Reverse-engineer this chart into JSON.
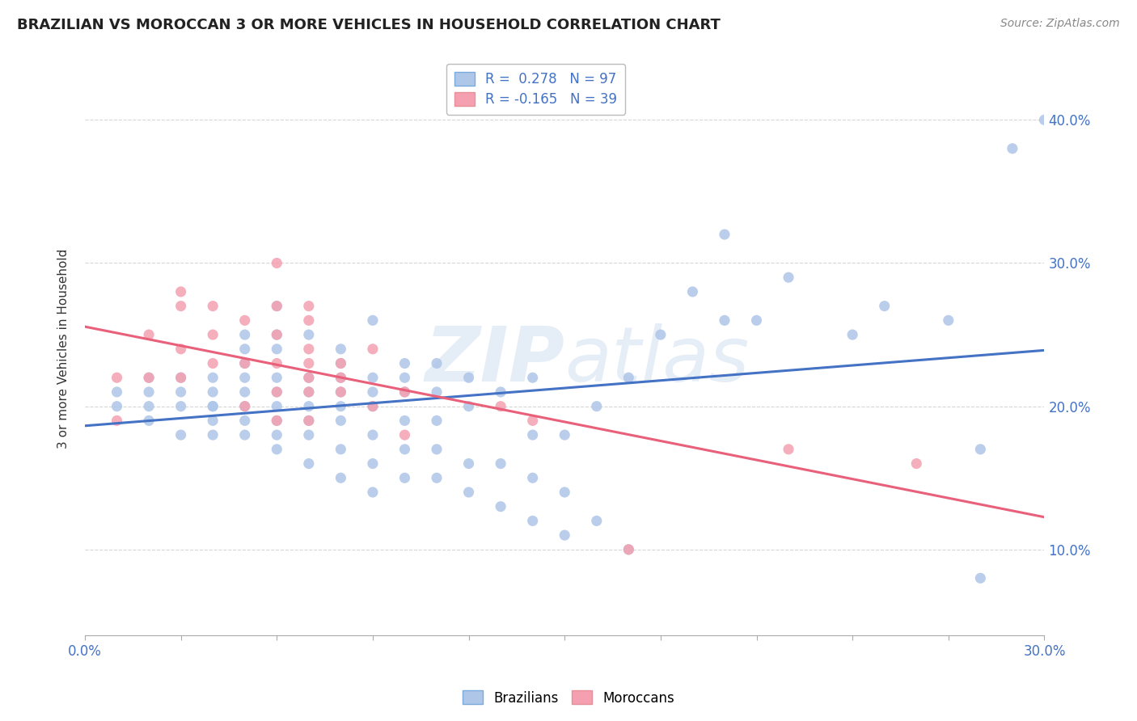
{
  "title": "BRAZILIAN VS MOROCCAN 3 OR MORE VEHICLES IN HOUSEHOLD CORRELATION CHART",
  "source": "Source: ZipAtlas.com",
  "ylabel": "3 or more Vehicles in Household",
  "xlim": [
    0.0,
    0.3
  ],
  "ylim": [
    0.04,
    0.44
  ],
  "brazilian_R": 0.278,
  "brazilian_N": 97,
  "moroccan_R": -0.165,
  "moroccan_N": 39,
  "brazil_color": "#aec6e8",
  "morocco_color": "#f4a0b0",
  "brazil_line_color": "#4472c4",
  "morocco_line_color": "#e8607a",
  "legend_label_1": "Brazilians",
  "legend_label_2": "Moroccans",
  "watermark": "ZIPatlas",
  "brazil_scatter_x": [
    0.01,
    0.01,
    0.02,
    0.02,
    0.02,
    0.02,
    0.03,
    0.03,
    0.03,
    0.03,
    0.04,
    0.04,
    0.04,
    0.04,
    0.04,
    0.04,
    0.05,
    0.05,
    0.05,
    0.05,
    0.05,
    0.05,
    0.05,
    0.05,
    0.06,
    0.06,
    0.06,
    0.06,
    0.06,
    0.06,
    0.06,
    0.06,
    0.06,
    0.07,
    0.07,
    0.07,
    0.07,
    0.07,
    0.07,
    0.07,
    0.08,
    0.08,
    0.08,
    0.08,
    0.08,
    0.08,
    0.08,
    0.08,
    0.09,
    0.09,
    0.09,
    0.09,
    0.09,
    0.09,
    0.09,
    0.1,
    0.1,
    0.1,
    0.1,
    0.1,
    0.1,
    0.11,
    0.11,
    0.11,
    0.11,
    0.11,
    0.12,
    0.12,
    0.12,
    0.12,
    0.13,
    0.13,
    0.13,
    0.14,
    0.14,
    0.14,
    0.14,
    0.15,
    0.15,
    0.15,
    0.16,
    0.16,
    0.17,
    0.17,
    0.18,
    0.19,
    0.2,
    0.2,
    0.21,
    0.22,
    0.24,
    0.25,
    0.27,
    0.28,
    0.28,
    0.29,
    0.3
  ],
  "brazil_scatter_y": [
    0.21,
    0.2,
    0.19,
    0.2,
    0.22,
    0.21,
    0.18,
    0.2,
    0.22,
    0.21,
    0.18,
    0.19,
    0.2,
    0.21,
    0.22,
    0.2,
    0.18,
    0.19,
    0.2,
    0.21,
    0.22,
    0.23,
    0.24,
    0.25,
    0.17,
    0.18,
    0.19,
    0.2,
    0.21,
    0.22,
    0.24,
    0.25,
    0.27,
    0.16,
    0.18,
    0.19,
    0.2,
    0.21,
    0.22,
    0.25,
    0.15,
    0.17,
    0.19,
    0.2,
    0.21,
    0.22,
    0.23,
    0.24,
    0.14,
    0.16,
    0.18,
    0.2,
    0.21,
    0.22,
    0.26,
    0.15,
    0.17,
    0.19,
    0.21,
    0.22,
    0.23,
    0.15,
    0.17,
    0.19,
    0.21,
    0.23,
    0.14,
    0.16,
    0.2,
    0.22,
    0.13,
    0.16,
    0.21,
    0.12,
    0.15,
    0.18,
    0.22,
    0.11,
    0.14,
    0.18,
    0.12,
    0.2,
    0.1,
    0.22,
    0.25,
    0.28,
    0.26,
    0.32,
    0.26,
    0.29,
    0.25,
    0.27,
    0.26,
    0.08,
    0.17,
    0.38,
    0.4
  ],
  "morocco_scatter_x": [
    0.01,
    0.01,
    0.02,
    0.02,
    0.03,
    0.03,
    0.03,
    0.03,
    0.04,
    0.04,
    0.04,
    0.05,
    0.05,
    0.05,
    0.06,
    0.06,
    0.06,
    0.06,
    0.06,
    0.06,
    0.07,
    0.07,
    0.07,
    0.07,
    0.07,
    0.07,
    0.07,
    0.08,
    0.08,
    0.08,
    0.09,
    0.09,
    0.1,
    0.1,
    0.13,
    0.14,
    0.17,
    0.22,
    0.26
  ],
  "morocco_scatter_y": [
    0.22,
    0.19,
    0.25,
    0.22,
    0.28,
    0.27,
    0.24,
    0.22,
    0.27,
    0.23,
    0.25,
    0.2,
    0.23,
    0.26,
    0.19,
    0.21,
    0.23,
    0.25,
    0.27,
    0.3,
    0.19,
    0.21,
    0.22,
    0.23,
    0.24,
    0.26,
    0.27,
    0.21,
    0.23,
    0.22,
    0.2,
    0.24,
    0.21,
    0.18,
    0.2,
    0.19,
    0.1,
    0.17,
    0.16
  ]
}
